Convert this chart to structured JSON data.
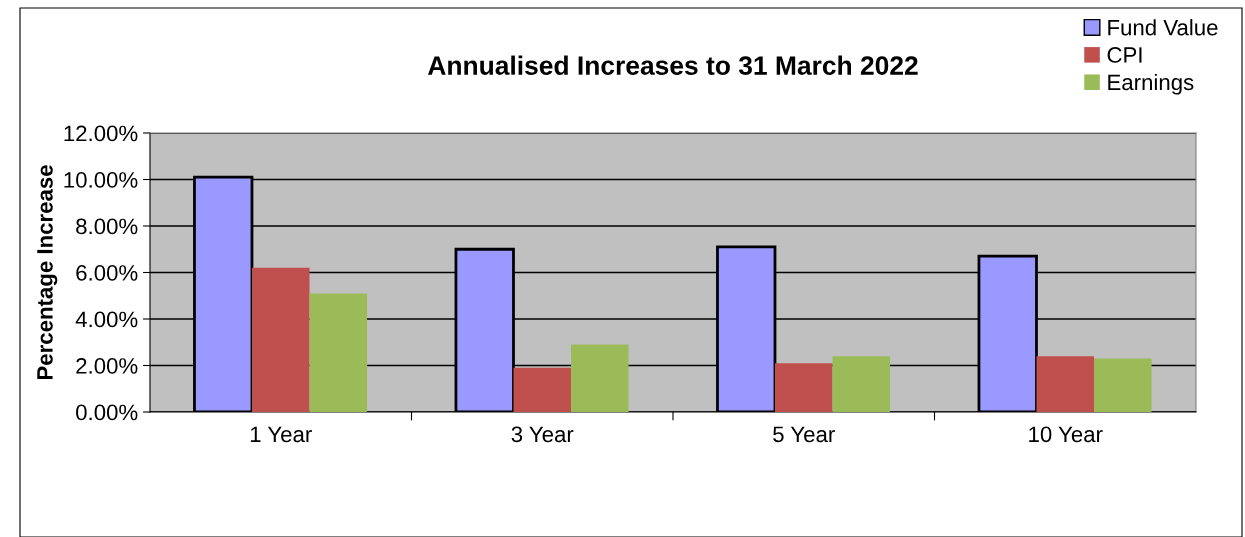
{
  "chart_data": {
    "type": "bar",
    "title": "Annualised Increases to 31 March 2022",
    "ylabel": "Percentage Increase",
    "categories": [
      "1 Year",
      "3 Year",
      "5 Year",
      "10 Year"
    ],
    "series": [
      {
        "name": "Fund Value",
        "color": "#9999ff",
        "values": [
          10.1,
          7.0,
          7.1,
          6.7
        ]
      },
      {
        "name": "CPI",
        "color": "#c0504d",
        "values": [
          6.2,
          1.9,
          2.1,
          2.4
        ]
      },
      {
        "name": "Earnings",
        "color": "#9bbb59",
        "values": [
          5.1,
          2.9,
          2.4,
          2.3
        ]
      }
    ],
    "ylim": [
      0,
      12
    ],
    "yticks": [
      {
        "value": 0,
        "label": "0.00%"
      },
      {
        "value": 2,
        "label": "2.00%"
      },
      {
        "value": 4,
        "label": "4.00%"
      },
      {
        "value": 6,
        "label": "6.00%"
      },
      {
        "value": 8,
        "label": "8.00%"
      },
      {
        "value": 10,
        "label": "10.00%"
      },
      {
        "value": 12,
        "label": "12.00%"
      }
    ],
    "grid": "y",
    "legend": "top right"
  }
}
